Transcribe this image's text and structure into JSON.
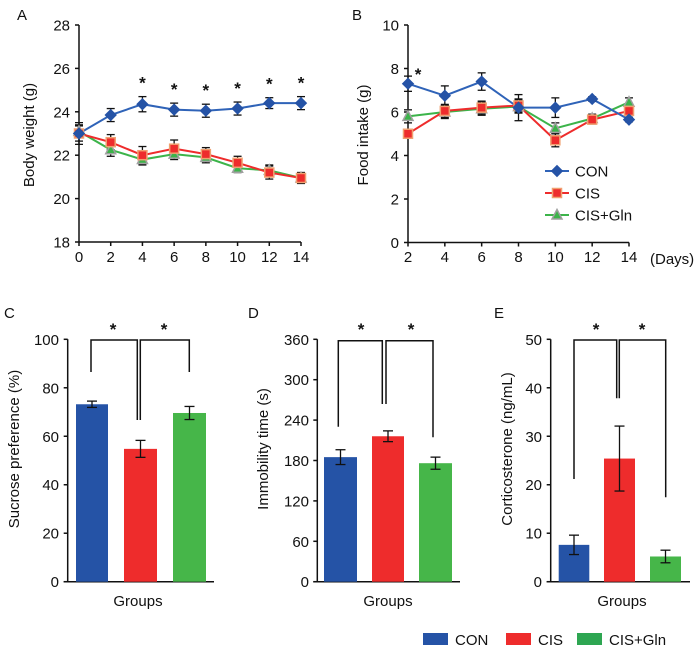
{
  "colors": {
    "CON": "#2553a6",
    "CON_line": "#2f63b8",
    "CIS": "#ee2c2c",
    "CIS_marker_border": "#f0a070",
    "CIS_Gln": "#46b649",
    "CIS_Gln_line": "#3cb44a",
    "CIS_Gln_marker_border": "#a0a0a0",
    "CIS_Gln_legend": "#2ea652",
    "axis": "#111111"
  },
  "legend_bottom": {
    "items": [
      {
        "label": "CON",
        "color_key": "CON"
      },
      {
        "label": "CIS",
        "color_key": "CIS"
      },
      {
        "label": "CIS+Gln",
        "color_key": "CIS_Gln_legend"
      }
    ]
  },
  "chart_data": [
    {
      "id": "A",
      "panel_label": "A",
      "type": "line",
      "title": "",
      "xlabel": "",
      "ylabel": "Body weight (g)",
      "x": [
        0,
        2,
        4,
        6,
        8,
        10,
        12,
        14
      ],
      "xlim": [
        0,
        14
      ],
      "ylim": [
        18,
        28
      ],
      "xticks": [
        0,
        2,
        4,
        6,
        8,
        10,
        12,
        14
      ],
      "yticks": [
        18,
        20,
        22,
        24,
        26,
        28
      ],
      "grid": false,
      "series": [
        {
          "name": "CON",
          "marker": "diamond",
          "values": [
            23.0,
            23.85,
            24.35,
            24.1,
            24.05,
            24.15,
            24.4,
            24.4
          ],
          "errors": [
            0.5,
            0.3,
            0.35,
            0.3,
            0.3,
            0.3,
            0.25,
            0.3
          ]
        },
        {
          "name": "CIS",
          "marker": "square",
          "values": [
            23.0,
            22.6,
            22.0,
            22.3,
            22.05,
            21.65,
            21.2,
            20.95
          ],
          "errors": [
            0.35,
            0.35,
            0.4,
            0.4,
            0.3,
            0.3,
            0.3,
            0.25
          ]
        },
        {
          "name": "CIS+Gln",
          "marker": "triangle",
          "values": [
            23.1,
            22.25,
            21.8,
            22.05,
            21.9,
            21.4,
            21.3,
            20.95
          ],
          "errors": [
            0.3,
            0.3,
            0.25,
            0.25,
            0.25,
            0.2,
            0.25,
            0.25
          ]
        }
      ],
      "annotations": [
        {
          "text": "*",
          "x": 4
        },
        {
          "text": "*",
          "x": 6
        },
        {
          "text": "*",
          "x": 8
        },
        {
          "text": "*",
          "x": 10
        },
        {
          "text": "*",
          "x": 12
        },
        {
          "text": "*",
          "x": 14
        }
      ]
    },
    {
      "id": "B",
      "panel_label": "B",
      "type": "line",
      "title": "",
      "xlabel": "(Days)",
      "ylabel": "Food intake (g)",
      "x": [
        2,
        4,
        6,
        8,
        10,
        12,
        14
      ],
      "xlim": [
        2,
        14
      ],
      "ylim": [
        0,
        10
      ],
      "xticks": [
        2,
        4,
        6,
        8,
        10,
        12,
        14
      ],
      "yticks": [
        0,
        2,
        4,
        6,
        8,
        10
      ],
      "grid": false,
      "legend": {
        "placement": "center-right",
        "items": [
          "CON",
          "CIS",
          "CIS+Gln"
        ]
      },
      "series": [
        {
          "name": "CON",
          "marker": "diamond",
          "values": [
            7.3,
            6.75,
            7.4,
            6.2,
            6.2,
            6.6,
            5.65
          ],
          "errors": [
            0.35,
            0.45,
            0.4,
            0.6,
            0.45,
            0.1,
            0.1
          ]
        },
        {
          "name": "CIS",
          "marker": "square",
          "values": [
            5.0,
            6.05,
            6.2,
            6.3,
            4.7,
            5.65,
            6.05
          ],
          "errors": [
            0.15,
            0.3,
            0.3,
            0.3,
            0.3,
            0.2,
            0.3
          ]
        },
        {
          "name": "CIS+Gln",
          "marker": "triangle",
          "values": [
            5.8,
            6.0,
            6.15,
            6.25,
            5.25,
            5.7,
            6.45
          ],
          "errors": [
            0.3,
            0.3,
            0.3,
            0.3,
            0.25,
            0.2,
            0.2
          ]
        }
      ],
      "annotations": [
        {
          "text": "*",
          "x": 2
        }
      ]
    },
    {
      "id": "C",
      "panel_label": "C",
      "type": "bar",
      "title": "",
      "xlabel": "Groups",
      "ylabel": "Sucrose preference (%)",
      "categories": [
        "CON",
        "CIS",
        "CIS+Gln"
      ],
      "values": [
        73.2,
        54.8,
        69.6
      ],
      "errors": [
        1.3,
        3.5,
        2.7
      ],
      "ylim": [
        0,
        100
      ],
      "yticks": [
        0,
        20,
        40,
        60,
        80,
        100
      ],
      "grid": false,
      "significance": [
        {
          "from": "CON",
          "to": "CIS",
          "text": "*"
        },
        {
          "from": "CIS",
          "to": "CIS+Gln",
          "text": "*"
        }
      ]
    },
    {
      "id": "D",
      "panel_label": "D",
      "type": "bar",
      "title": "",
      "xlabel": "Groups",
      "ylabel": "Immobility time (s)",
      "categories": [
        "CON",
        "CIS",
        "CIS+Gln"
      ],
      "values": [
        185,
        216,
        176
      ],
      "errors": [
        11,
        8,
        9
      ],
      "ylim": [
        0,
        360
      ],
      "yticks": [
        0,
        60,
        120,
        180,
        240,
        300,
        360
      ],
      "grid": false,
      "significance": [
        {
          "from": "CON",
          "to": "CIS",
          "text": "*"
        },
        {
          "from": "CIS",
          "to": "CIS+Gln",
          "text": "*"
        }
      ]
    },
    {
      "id": "E",
      "panel_label": "E",
      "type": "bar",
      "title": "",
      "xlabel": "Groups",
      "ylabel": "Corticosterone (ng/mL)",
      "categories": [
        "CON",
        "CIS",
        "CIS+Gln"
      ],
      "values": [
        7.6,
        25.4,
        5.2
      ],
      "errors": [
        2.0,
        6.7,
        1.3
      ],
      "ylim": [
        0,
        50
      ],
      "yticks": [
        0,
        10,
        20,
        30,
        40,
        50
      ],
      "grid": false,
      "significance": [
        {
          "from": "CON",
          "to": "CIS",
          "text": "*"
        },
        {
          "from": "CIS",
          "to": "CIS+Gln",
          "text": "*"
        }
      ]
    }
  ]
}
